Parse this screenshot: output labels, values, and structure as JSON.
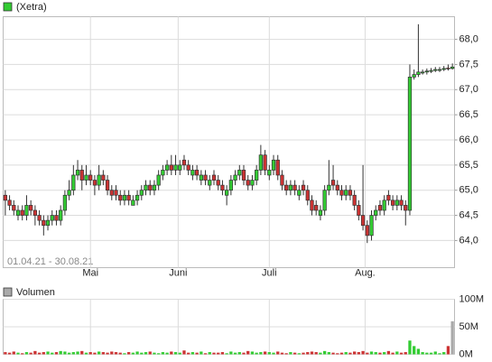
{
  "chart_data": {
    "type": "candlestick",
    "legend": "(Xetra)",
    "date_range": "01.04.21 - 30.08.21",
    "up_color": "#33cc33",
    "down_color": "#cc3333",
    "open": [
      64.9,
      64.8,
      64.7,
      64.5,
      64.6,
      64.5,
      64.7,
      64.6,
      64.5,
      64.4,
      64.3,
      64.4,
      64.5,
      64.4,
      64.6,
      64.9,
      65.0,
      65.3,
      65.4,
      65.2,
      65.3,
      65.2,
      65.1,
      65.3,
      65.2,
      65.0,
      65.0,
      64.9,
      64.8,
      64.9,
      64.7,
      64.8,
      64.9,
      65.0,
      65.1,
      65.0,
      65.1,
      65.3,
      65.4,
      65.5,
      65.4,
      65.4,
      65.6,
      65.5,
      65.3,
      65.4,
      65.2,
      65.3,
      65.1,
      65.3,
      65.2,
      65.1,
      64.9,
      65.0,
      65.2,
      65.3,
      65.4,
      65.2,
      65.1,
      65.2,
      65.4,
      65.7,
      65.3,
      65.4,
      65.6,
      65.3,
      65.1,
      65.0,
      65.1,
      64.9,
      65.1,
      65.0,
      64.8,
      64.7,
      64.5,
      64.6,
      65.0,
      65.2,
      65.1,
      65.0,
      64.9,
      65.0,
      64.9,
      64.7,
      64.5,
      64.3,
      64.1,
      64.5,
      64.7,
      64.6,
      64.9,
      64.8,
      64.7,
      64.8,
      64.7,
      64.6,
      67.25,
      67.3,
      67.33,
      67.35,
      67.37,
      67.38,
      67.39,
      67.4,
      67.43,
      67.42
    ],
    "high": [
      65.0,
      64.9,
      64.8,
      64.7,
      64.7,
      64.9,
      64.8,
      64.7,
      64.6,
      64.5,
      64.5,
      64.6,
      64.6,
      64.7,
      65.0,
      65.2,
      65.5,
      65.6,
      65.5,
      65.5,
      65.4,
      65.3,
      65.5,
      65.4,
      65.3,
      65.1,
      65.1,
      65.0,
      65.0,
      65.0,
      64.9,
      65.0,
      65.1,
      65.2,
      65.2,
      65.2,
      65.4,
      65.5,
      65.6,
      65.7,
      65.7,
      65.6,
      65.7,
      65.6,
      65.5,
      65.5,
      65.4,
      65.4,
      65.3,
      65.4,
      65.3,
      65.2,
      65.1,
      65.3,
      65.4,
      65.5,
      65.5,
      65.3,
      65.3,
      65.5,
      65.9,
      65.8,
      65.5,
      65.7,
      65.7,
      65.4,
      65.2,
      65.2,
      65.2,
      65.1,
      65.2,
      65.1,
      64.9,
      64.8,
      64.7,
      65.1,
      65.6,
      65.5,
      65.2,
      65.1,
      65.1,
      65.1,
      65.0,
      64.8,
      65.5,
      64.4,
      64.6,
      64.7,
      64.8,
      64.9,
      65.0,
      64.9,
      64.9,
      64.9,
      64.8,
      67.5,
      67.4,
      68.3,
      67.4,
      67.42,
      67.43,
      67.45,
      67.45,
      67.47,
      67.5,
      67.52
    ],
    "low": [
      64.5,
      64.6,
      64.5,
      64.4,
      64.4,
      64.4,
      64.5,
      64.3,
      64.3,
      64.1,
      64.2,
      64.3,
      64.3,
      64.3,
      64.5,
      64.8,
      64.9,
      65.2,
      65.0,
      65.1,
      65.1,
      64.9,
      65.0,
      65.1,
      64.9,
      64.8,
      64.8,
      64.7,
      64.7,
      64.7,
      64.7,
      64.7,
      64.8,
      64.9,
      64.9,
      64.9,
      65.0,
      65.2,
      65.3,
      65.3,
      65.3,
      65.3,
      65.4,
      65.3,
      65.2,
      65.2,
      65.1,
      65.1,
      65.0,
      65.1,
      65.0,
      64.9,
      64.7,
      64.9,
      65.1,
      65.2,
      65.1,
      65.0,
      65.0,
      65.1,
      65.3,
      65.3,
      65.2,
      65.3,
      65.2,
      65.0,
      64.9,
      64.9,
      64.9,
      64.8,
      64.9,
      64.7,
      64.5,
      64.5,
      64.4,
      64.5,
      64.9,
      65.0,
      64.9,
      64.8,
      64.8,
      64.8,
      64.6,
      64.4,
      64.2,
      63.95,
      64.0,
      64.4,
      64.5,
      64.5,
      64.7,
      64.6,
      64.6,
      64.6,
      64.3,
      64.5,
      67.2,
      67.25,
      67.3,
      67.3,
      67.33,
      67.35,
      67.35,
      67.37,
      67.38,
      67.4
    ],
    "close": [
      64.8,
      64.7,
      64.6,
      64.6,
      64.5,
      64.7,
      64.6,
      64.5,
      64.4,
      64.3,
      64.4,
      64.5,
      64.4,
      64.6,
      64.9,
      65.0,
      65.3,
      65.4,
      65.2,
      65.3,
      65.2,
      65.1,
      65.3,
      65.2,
      65.0,
      64.9,
      64.9,
      64.8,
      64.9,
      64.8,
      64.8,
      64.9,
      65.0,
      65.1,
      65.0,
      65.1,
      65.3,
      65.4,
      65.5,
      65.4,
      65.5,
      65.5,
      65.5,
      65.4,
      65.4,
      65.3,
      65.3,
      65.2,
      65.2,
      65.2,
      65.1,
      65.0,
      65.0,
      65.2,
      65.3,
      65.4,
      65.2,
      65.1,
      65.2,
      65.4,
      65.7,
      65.4,
      65.4,
      65.6,
      65.3,
      65.1,
      65.0,
      65.1,
      65.0,
      65.0,
      65.0,
      64.8,
      64.6,
      64.6,
      64.6,
      65.0,
      65.1,
      65.1,
      65.0,
      64.9,
      65.0,
      64.9,
      64.7,
      64.5,
      64.3,
      64.1,
      64.5,
      64.6,
      64.6,
      64.8,
      64.8,
      64.7,
      64.8,
      64.7,
      64.6,
      67.25,
      67.3,
      67.35,
      67.35,
      67.37,
      67.38,
      67.4,
      67.4,
      67.42,
      67.42,
      67.45
    ],
    "xlim": [
      -0.5,
      105.5
    ],
    "xticks": [
      {
        "value": 20,
        "label": "Mai"
      },
      {
        "value": 40.6,
        "label": "Juni"
      },
      {
        "value": 62,
        "label": "Juli"
      },
      {
        "value": 84.5,
        "label": "Aug."
      }
    ],
    "ylim": [
      63.46,
      68.45
    ],
    "yticks": [
      {
        "value": 64,
        "label": "64,0"
      },
      {
        "value": 64.5,
        "label": "64,5"
      },
      {
        "value": 65,
        "label": "65,0"
      },
      {
        "value": 65.5,
        "label": "65,5"
      },
      {
        "value": 66,
        "label": "66,0"
      },
      {
        "value": 66.5,
        "label": "66,5"
      },
      {
        "value": 67,
        "label": "67,0"
      },
      {
        "value": 67.5,
        "label": "67,5"
      },
      {
        "value": 68,
        "label": "68,0"
      }
    ],
    "grid": true,
    "volume": {
      "label": "Volumen",
      "color": "#aaaaaa",
      "values": [
        4,
        3,
        5,
        3,
        2,
        4,
        3,
        6,
        3,
        4,
        5,
        3,
        4,
        6,
        5,
        3,
        4,
        5,
        6,
        3,
        4,
        3,
        5,
        4,
        3,
        5,
        4,
        3,
        2,
        4,
        3,
        5,
        3,
        4,
        5,
        3,
        2,
        4,
        3,
        5,
        4,
        3,
        7,
        3,
        4,
        3,
        5,
        2,
        4,
        3,
        3,
        4,
        2,
        5,
        3,
        4,
        3,
        6,
        5,
        3,
        4,
        5,
        4,
        3,
        5,
        3,
        2,
        4,
        3,
        2,
        3,
        4,
        5,
        4,
        3,
        6,
        4,
        3,
        2,
        3,
        4,
        3,
        5,
        4,
        6,
        3,
        5,
        4,
        3,
        4,
        6,
        3,
        5,
        3,
        4,
        25,
        15,
        10,
        4,
        3,
        3,
        5,
        2,
        4,
        15,
        60
      ],
      "ylim": [
        0,
        100
      ],
      "yticks": [
        {
          "value": 0,
          "label": "0M"
        },
        {
          "value": 50,
          "label": "50M"
        },
        {
          "value": 100,
          "label": "100M"
        }
      ]
    }
  }
}
